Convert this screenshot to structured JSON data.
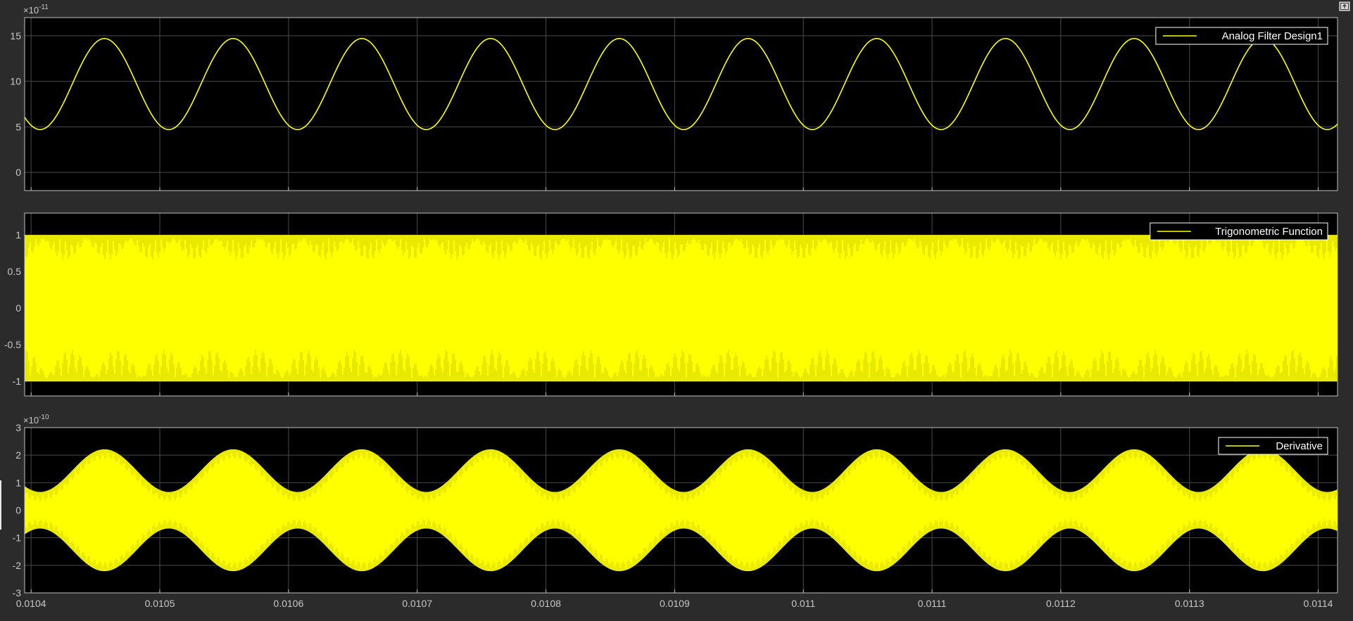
{
  "colors": {
    "figure_bg": "#2b2b2b",
    "axes_bg": "#000000",
    "grid": "#4a4a4a",
    "tick_text": "#c8c8c8",
    "trace": "#ffff00"
  },
  "toolbar": {
    "undock_icon": "undock-icon"
  },
  "chart_data": [
    {
      "type": "line",
      "xlim": [
        0.010395,
        0.011415
      ],
      "ylim": [
        -2,
        17
      ],
      "exponent_label": "×10",
      "exponent_power": "-11",
      "yticks": [
        0,
        5,
        10,
        15
      ],
      "ytick_labels": [
        "0",
        "5",
        "10",
        "15"
      ],
      "grid": true,
      "legend_position": "top-right",
      "series": [
        {
          "name": "Analog Filter Design1",
          "color": "#ffff00",
          "model": "sinusoid",
          "period": 0.0001,
          "mean": 9.7,
          "amplitude": 5.0,
          "min": 4.7,
          "max": 14.7,
          "first_peak_x": 0.010457
        }
      ]
    },
    {
      "type": "line",
      "xlim": [
        0.010395,
        0.011415
      ],
      "ylim": [
        -1.2,
        1.3
      ],
      "yticks": [
        -1,
        -0.5,
        0,
        0.5,
        1
      ],
      "ytick_labels": [
        "-1",
        "-0.5",
        "0",
        "0.5",
        "1"
      ],
      "grid": true,
      "legend_position": "top-right",
      "series": [
        {
          "name": "Trigonometric Function",
          "color": "#ffff00",
          "model": "dense-oscillation",
          "min": -1,
          "max": 1
        }
      ]
    },
    {
      "type": "line",
      "xlim": [
        0.010395,
        0.011415
      ],
      "ylim": [
        -3,
        3
      ],
      "exponent_label": "×10",
      "exponent_power": "-10",
      "yticks": [
        -3,
        -2,
        -1,
        0,
        1,
        2,
        3
      ],
      "ytick_labels": [
        "-3",
        "-2",
        "-1",
        "0",
        "1",
        "2",
        "3"
      ],
      "xticks": [
        0.0104,
        0.0105,
        0.0106,
        0.0107,
        0.0108,
        0.0109,
        0.011,
        0.0111,
        0.0112,
        0.0113,
        0.0114
      ],
      "xtick_labels": [
        "0.0104",
        "0.0105",
        "0.0106",
        "0.0107",
        "0.0108",
        "0.0109",
        "0.011",
        "0.0111",
        "0.0112",
        "0.0113",
        "0.0114"
      ],
      "grid": true,
      "legend_position": "top-right",
      "series": [
        {
          "name": "Derivative",
          "color": "#ffff00",
          "model": "dense-oscillation-modulated",
          "envelope_period": 0.0001,
          "envelope_min": 0.65,
          "envelope_max": 2.2,
          "first_envelope_peak_x": 0.010457
        }
      ]
    }
  ]
}
